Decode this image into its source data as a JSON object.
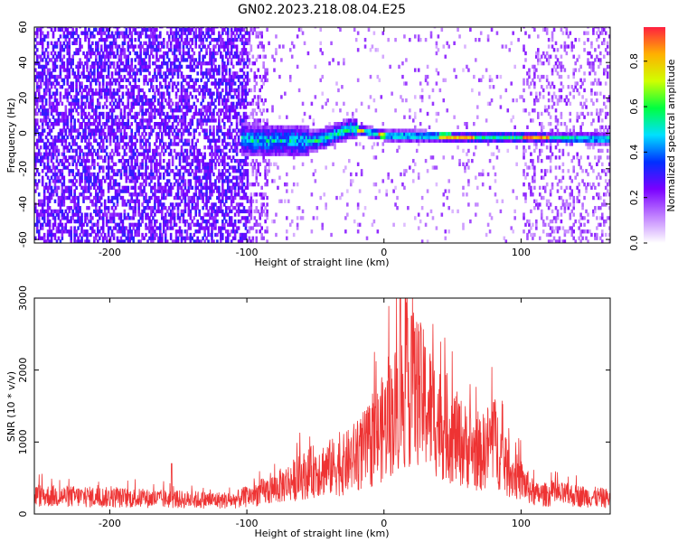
{
  "figure": {
    "title": "GN02.2023.218.08.04.E25"
  },
  "chart_data": [
    {
      "type": "heatmap",
      "xlabel": "Height of straight line (km)",
      "ylabel": "Frequency (Hz)",
      "xlim": [
        -255,
        165
      ],
      "ylim": [
        -62,
        60
      ],
      "x_ticks": [
        -200,
        -100,
        0,
        100
      ],
      "x_tick_labels": [
        "-200",
        "-100",
        "0",
        "100"
      ],
      "y_ticks": [
        -60,
        -40,
        -20,
        0,
        20,
        40,
        60
      ],
      "y_tick_labels": [
        "-60",
        "-40",
        "-20",
        "0",
        "20",
        "40",
        "60"
      ],
      "colorbar": {
        "label": "Normalized spectral amplitude",
        "range": [
          0,
          0.95
        ],
        "ticks": [
          0.0,
          0.2,
          0.4,
          0.6,
          0.8
        ],
        "tick_labels": [
          "0.0",
          "0.2",
          "0.4",
          "0.6",
          "0.8"
        ],
        "colormap": [
          "#ffffff",
          "#c080ff",
          "#7a00ff",
          "#0030ff",
          "#00e0ff",
          "#00ff40",
          "#d0ff00",
          "#ffb000",
          "#ff2040"
        ]
      },
      "features": {
        "noise_region_km": [
          -255,
          -100
        ],
        "fringe_region_km": [
          -100,
          -85
        ],
        "noise_region_right_km": [
          100,
          165
        ],
        "signal_band_center_hz": [
          {
            "x": -100,
            "y": -5
          },
          {
            "x": -50,
            "y": -5
          },
          {
            "x": -25,
            "y": 2
          },
          {
            "x": 0,
            "y": -2
          },
          {
            "x": 60,
            "y": -3
          },
          {
            "x": 100,
            "y": -3
          },
          {
            "x": 165,
            "y": -4
          }
        ],
        "peak_amplitude_segments_km": [
          [
            -20,
            -15
          ],
          [
            -5,
            0
          ],
          [
            40,
            65
          ],
          [
            100,
            120
          ]
        ]
      }
    },
    {
      "type": "line",
      "xlabel": "Height of straight line (km)",
      "ylabel": "SNR (10 * v/v)",
      "xlim": [
        -255,
        165
      ],
      "ylim": [
        0,
        3000
      ],
      "x_ticks": [
        -200,
        -100,
        0,
        100
      ],
      "x_tick_labels": [
        "-200",
        "-100",
        "0",
        "100"
      ],
      "y_ticks": [
        0,
        1000,
        2000,
        3000
      ],
      "y_tick_labels": [
        "0",
        "1000",
        "2000",
        "3000"
      ],
      "series_color": "#ee3333",
      "envelope": [
        {
          "x": -255,
          "y": 380
        },
        {
          "x": -200,
          "y": 340
        },
        {
          "x": -150,
          "y": 300
        },
        {
          "x": -110,
          "y": 280
        },
        {
          "x": -80,
          "y": 520
        },
        {
          "x": -50,
          "y": 900
        },
        {
          "x": -30,
          "y": 1000
        },
        {
          "x": -10,
          "y": 1400
        },
        {
          "x": 10,
          "y": 2200
        },
        {
          "x": 20,
          "y": 2600
        },
        {
          "x": 25,
          "y": 2500
        },
        {
          "x": 40,
          "y": 1900
        },
        {
          "x": 55,
          "y": 1500
        },
        {
          "x": 70,
          "y": 1200
        },
        {
          "x": 80,
          "y": 1550
        },
        {
          "x": 90,
          "y": 900
        },
        {
          "x": 100,
          "y": 700
        },
        {
          "x": 110,
          "y": 400
        },
        {
          "x": 130,
          "y": 400
        },
        {
          "x": 165,
          "y": 320
        }
      ],
      "spikes": [
        {
          "x": -155,
          "y": 700
        },
        {
          "x": 12,
          "y": 3000
        },
        {
          "x": 20,
          "y": 2750
        },
        {
          "x": 80,
          "y": 1550
        }
      ]
    }
  ]
}
